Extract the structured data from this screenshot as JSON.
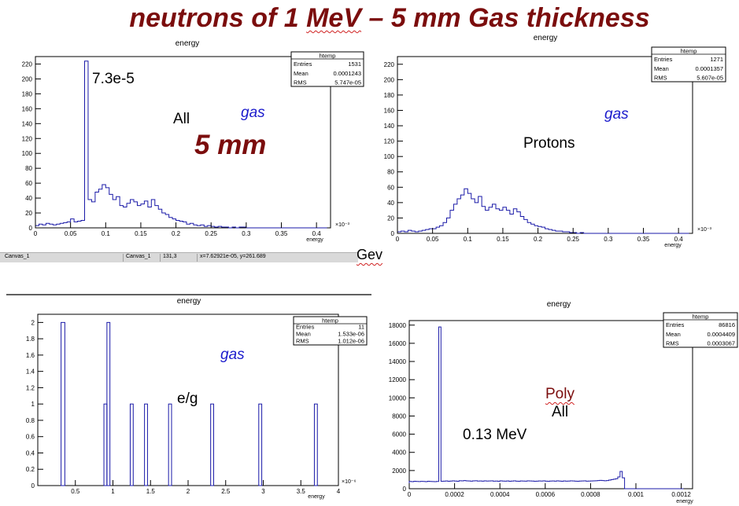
{
  "title": "neutrons of 1 MeV – 5 mm Gas thickness",
  "title_underlined_word": "MeV",
  "status_bar": {
    "canvas_name": "Canvas_1",
    "canvas_ref": "Canvas_1",
    "pixel": "131,3",
    "coords": "x=7.62921e-05, y=261.689"
  },
  "gev_label": "Gev",
  "chart_data": [
    {
      "type": "histogram",
      "title": "energy",
      "xlabel": "energy",
      "x_multiplier": "×10⁻³",
      "xlim": [
        0,
        0.42
      ],
      "ylim": [
        0,
        230
      ],
      "x_ticks": [
        0,
        0.05,
        0.1,
        0.15,
        0.2,
        0.25,
        0.3,
        0.35,
        0.4
      ],
      "y_ticks": [
        0,
        20,
        40,
        60,
        80,
        100,
        120,
        140,
        160,
        180,
        200,
        220
      ],
      "x_tick_labels": [
        "0",
        "0.05",
        "0.1",
        "0.15",
        "0.2",
        "0.25",
        "0.3",
        "0.35",
        "0.4"
      ],
      "y_tick_labels": [
        "0",
        "20",
        "40",
        "60",
        "80",
        "100",
        "120",
        "140",
        "160",
        "180",
        "200",
        "220"
      ],
      "bin_width": 0.005,
      "bin_start": 0,
      "values": [
        3,
        5,
        4,
        6,
        5,
        4,
        5,
        6,
        7,
        8,
        12,
        8,
        9,
        10,
        224,
        38,
        35,
        48,
        52,
        58,
        54,
        45,
        38,
        42,
        30,
        28,
        33,
        38,
        35,
        30,
        32,
        36,
        28,
        38,
        30,
        25,
        20,
        18,
        14,
        12,
        10,
        9,
        8,
        5,
        6,
        4,
        3,
        4,
        2,
        3,
        2,
        1,
        2,
        1,
        1,
        0,
        1,
        0,
        1,
        1,
        0,
        0,
        0,
        0,
        0,
        0,
        0,
        0,
        0,
        0,
        0,
        0,
        0,
        0,
        0,
        0,
        0,
        0,
        0,
        0,
        0,
        0,
        0,
        0
      ],
      "stats": {
        "name": "htemp",
        "rows": [
          [
            "Entries",
            "1531"
          ],
          [
            "Mean",
            "0.0001243"
          ],
          [
            "RMS",
            "5.747e-05"
          ]
        ]
      },
      "annotations": [
        {
          "text": "7.3e-5",
          "color": "#000000"
        },
        {
          "text": "All",
          "color": "#000000"
        },
        {
          "text": "gas",
          "color": "#1a1acc"
        },
        {
          "text": "5 mm",
          "color": "#7b0d0d"
        }
      ]
    },
    {
      "type": "histogram",
      "title": "energy",
      "xlabel": "energy",
      "x_multiplier": "×10⁻³",
      "xlim": [
        0,
        0.42
      ],
      "ylim": [
        0,
        230
      ],
      "x_ticks": [
        0,
        0.05,
        0.1,
        0.15,
        0.2,
        0.25,
        0.3,
        0.35,
        0.4
      ],
      "y_ticks": [
        0,
        20,
        40,
        60,
        80,
        100,
        120,
        140,
        160,
        180,
        200,
        220
      ],
      "x_tick_labels": [
        "0",
        "0.05",
        "0.1",
        "0.15",
        "0.2",
        "0.25",
        "0.3",
        "0.35",
        "0.4"
      ],
      "y_tick_labels": [
        "0",
        "20",
        "40",
        "60",
        "80",
        "100",
        "120",
        "140",
        "160",
        "180",
        "200",
        "220"
      ],
      "bin_width": 0.005,
      "bin_start": 0,
      "values": [
        2,
        3,
        2,
        4,
        3,
        2,
        3,
        4,
        5,
        6,
        6,
        8,
        10,
        14,
        20,
        30,
        38,
        45,
        50,
        58,
        52,
        45,
        40,
        48,
        35,
        30,
        34,
        38,
        32,
        30,
        34,
        30,
        25,
        32,
        28,
        22,
        18,
        14,
        12,
        10,
        9,
        8,
        6,
        5,
        4,
        3,
        3,
        2,
        2,
        1,
        1,
        0,
        1,
        0,
        0,
        0,
        0,
        0,
        0,
        0,
        0,
        0,
        0,
        0,
        0,
        0,
        0,
        0,
        0,
        0,
        0,
        0,
        0,
        0,
        0,
        0,
        0,
        0,
        0,
        0,
        0,
        0,
        0,
        0
      ],
      "stats": {
        "name": "htemp",
        "rows": [
          [
            "Entries",
            "1271"
          ],
          [
            "Mean",
            "0.0001357"
          ],
          [
            "RMS",
            "5.607e-05"
          ]
        ]
      },
      "annotations": [
        {
          "text": "gas",
          "color": "#1a1acc"
        },
        {
          "text": "Protons",
          "color": "#000000"
        }
      ]
    },
    {
      "type": "histogram",
      "title": "energy",
      "xlabel": "energy",
      "x_multiplier": "×10⁻⁶",
      "xlim": [
        0,
        4
      ],
      "ylim": [
        0,
        2.1
      ],
      "x_ticks": [
        0.5,
        1,
        1.5,
        2,
        2.5,
        3,
        3.5,
        4
      ],
      "y_ticks": [
        0,
        0.2,
        0.4,
        0.6,
        0.8,
        1,
        1.2,
        1.4,
        1.6,
        1.8,
        2
      ],
      "x_tick_labels": [
        "0.5",
        "1",
        "1.5",
        "2",
        "2.5",
        "3",
        "3.5",
        "4"
      ],
      "y_tick_labels": [
        "0",
        "0.2",
        "0.4",
        "0.6",
        "0.8",
        "1",
        "1.2",
        "1.4",
        "1.6",
        "1.8",
        "2"
      ],
      "bars": [
        {
          "x0": 0.31,
          "x1": 0.36,
          "v": 2
        },
        {
          "x0": 0.88,
          "x1": 0.92,
          "v": 1
        },
        {
          "x0": 0.92,
          "x1": 0.96,
          "v": 2
        },
        {
          "x0": 1.23,
          "x1": 1.27,
          "v": 1
        },
        {
          "x0": 1.42,
          "x1": 1.46,
          "v": 1
        },
        {
          "x0": 1.74,
          "x1": 1.78,
          "v": 1
        },
        {
          "x0": 2.3,
          "x1": 2.34,
          "v": 1
        },
        {
          "x0": 2.94,
          "x1": 2.98,
          "v": 1
        },
        {
          "x0": 3.68,
          "x1": 3.72,
          "v": 1
        }
      ],
      "stats": {
        "name": "htemp",
        "rows": [
          [
            "Entries",
            "11"
          ],
          [
            "Mean",
            "1.533e-06"
          ],
          [
            "RMS",
            "1.012e-06"
          ]
        ]
      },
      "annotations": [
        {
          "text": "gas",
          "color": "#1a1acc"
        },
        {
          "text": "e/g",
          "color": "#000000"
        }
      ]
    },
    {
      "type": "histogram",
      "title": "energy",
      "xlabel": "energy",
      "xlim": [
        0,
        0.00125
      ],
      "ylim": [
        0,
        18500
      ],
      "x_ticks": [
        0,
        0.0002,
        0.0004,
        0.0006,
        0.0008,
        0.001,
        0.0012
      ],
      "y_ticks": [
        0,
        2000,
        4000,
        6000,
        8000,
        10000,
        12000,
        14000,
        16000,
        18000
      ],
      "x_tick_labels": [
        "0",
        "0.0002",
        "0.0004",
        "0.0006",
        "0.0008",
        "0.001",
        "0.0012"
      ],
      "y_tick_labels": [
        "0",
        "2000",
        "4000",
        "6000",
        "8000",
        "10000",
        "12000",
        "14000",
        "16000",
        "18000"
      ],
      "bin_width": 1e-05,
      "bin_start": 0,
      "values": [
        800,
        780,
        820,
        800,
        790,
        810,
        800,
        780,
        820,
        800,
        790,
        780,
        800,
        17800,
        820,
        830,
        850,
        820,
        840,
        860,
        840,
        820,
        880,
        860,
        900,
        870,
        850,
        830,
        860,
        880,
        840,
        850,
        830,
        860,
        840,
        850,
        860,
        830,
        840,
        820,
        860,
        840,
        830,
        850,
        820,
        840,
        860,
        830,
        820,
        850,
        840,
        830,
        860,
        850,
        840,
        820,
        830,
        850,
        840,
        860,
        830,
        820,
        840,
        850,
        830,
        860,
        840,
        820,
        850,
        830,
        840,
        860,
        850,
        830,
        820,
        840,
        850,
        860,
        830,
        840,
        850,
        860,
        880,
        900,
        920,
        900,
        880,
        900,
        950,
        1000,
        1050,
        1100,
        1300,
        1900,
        1200,
        0,
        0,
        0,
        0,
        0,
        0,
        0,
        0,
        0,
        0,
        0,
        0,
        0,
        0,
        0,
        0,
        0,
        0,
        0,
        0,
        0,
        0,
        0,
        0,
        0,
        0
      ],
      "stats": {
        "name": "htemp",
        "rows": [
          [
            "Entries",
            "86816"
          ],
          [
            "Mean",
            "0.0004409"
          ],
          [
            "RMS",
            "0.0003067"
          ]
        ]
      },
      "annotations": [
        {
          "text": "Poly",
          "color": "#7b0d0d"
        },
        {
          "text": "All",
          "color": "#000000"
        },
        {
          "text": "0.13 MeV",
          "color": "#000000"
        }
      ]
    }
  ]
}
